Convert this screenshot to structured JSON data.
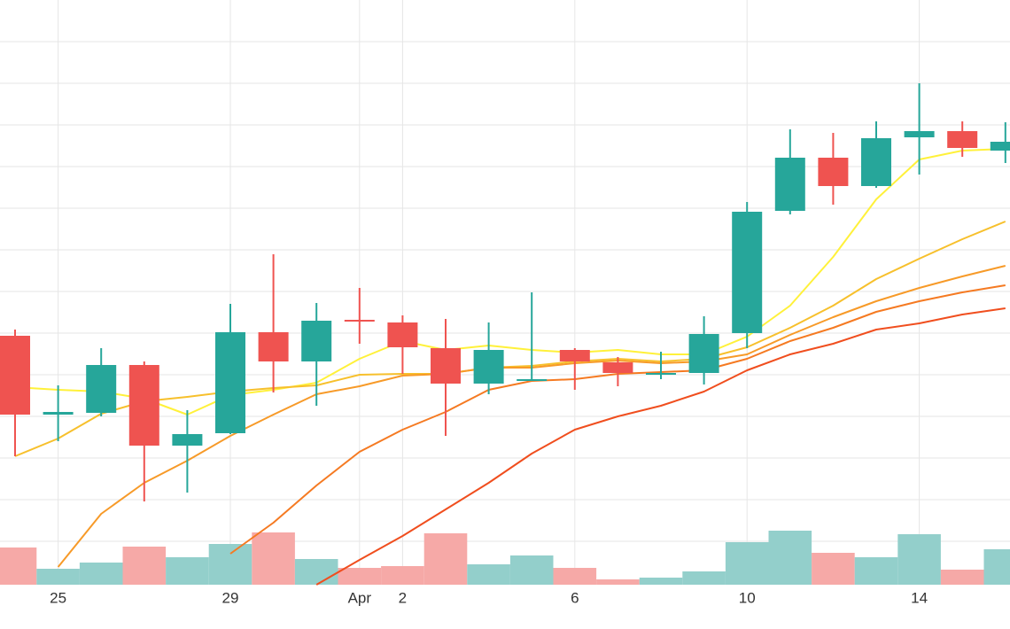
{
  "chart_data": {
    "type": "candlestick",
    "categories": [
      null,
      "25",
      null,
      null,
      null,
      "29",
      null,
      null,
      "Apr",
      "2",
      null,
      null,
      null,
      "6",
      null,
      null,
      null,
      "10",
      null,
      null,
      null,
      "14",
      null,
      null
    ],
    "open": [
      281,
      192,
      194,
      248,
      157,
      171,
      285,
      252,
      299,
      296,
      267,
      227,
      230,
      265,
      251,
      237,
      239,
      284,
      422,
      482,
      450,
      505,
      512,
      490
    ],
    "high": [
      288,
      225,
      267,
      252,
      197,
      317,
      373,
      318,
      335,
      304,
      300,
      296,
      330,
      267,
      257,
      263,
      303,
      432,
      514,
      510,
      523,
      566,
      523,
      522
    ],
    "low": [
      145,
      162,
      190,
      94,
      104,
      170,
      217,
      202,
      272,
      238,
      168,
      215,
      230,
      220,
      224,
      232,
      226,
      267,
      418,
      429,
      448,
      463,
      483,
      476
    ],
    "close": [
      192,
      195,
      248,
      157,
      170,
      285,
      252,
      298,
      297,
      268,
      227,
      265,
      232,
      252,
      239,
      239,
      283,
      421,
      482,
      450,
      504,
      512,
      493,
      500
    ],
    "volume": [
      42,
      18,
      25,
      43,
      31,
      46,
      59,
      29,
      19,
      21,
      58,
      23,
      33,
      19,
      6,
      8,
      15,
      48,
      61,
      36,
      31,
      57,
      17,
      40
    ],
    "vlim": [
      0,
      100
    ],
    "up_color": "#26a69a",
    "down_color": "#ef5350",
    "volume_up_color": "#93cfcb",
    "volume_down_color": "#f6a9a7",
    "series": [
      {
        "color": "#fff13a",
        "values": [
          223,
          220,
          218,
          210,
          192,
          214,
          220,
          228,
          255,
          275,
          265,
          270,
          265,
          262,
          265,
          260,
          260,
          280,
          315,
          370,
          435,
          480,
          490,
          492
        ]
      },
      {
        "color": "#f7c02c",
        "values": [
          145,
          165,
          193,
          207,
          212,
          218,
          222,
          225,
          237,
          238,
          238,
          245,
          247,
          252,
          255,
          252,
          255,
          268,
          290,
          315,
          345,
          368,
          390,
          410
        ]
      },
      {
        "color": "#f79a28",
        "values": [
          null,
          20,
          80,
          115,
          140,
          168,
          192,
          215,
          224,
          236,
          238,
          245,
          245,
          250,
          253,
          250,
          252,
          260,
          282,
          302,
          320,
          335,
          348,
          360
        ]
      },
      {
        "color": "#f57a22",
        "values": [
          null,
          null,
          null,
          null,
          null,
          35,
          70,
          112,
          150,
          175,
          195,
          220,
          230,
          232,
          238,
          240,
          242,
          255,
          275,
          290,
          308,
          320,
          330,
          338
        ]
      },
      {
        "color": "#f04e1e",
        "values": [
          null,
          null,
          null,
          null,
          null,
          null,
          null,
          0,
          28,
          55,
          85,
          115,
          148,
          175,
          190,
          202,
          218,
          242,
          260,
          272,
          288,
          295,
          305,
          312
        ]
      }
    ],
    "ylim": [
      0,
      660
    ],
    "yticks": [
      49,
      96,
      143,
      190,
      237,
      284,
      331,
      378,
      425,
      472,
      519,
      566,
      613
    ],
    "grid": true
  }
}
